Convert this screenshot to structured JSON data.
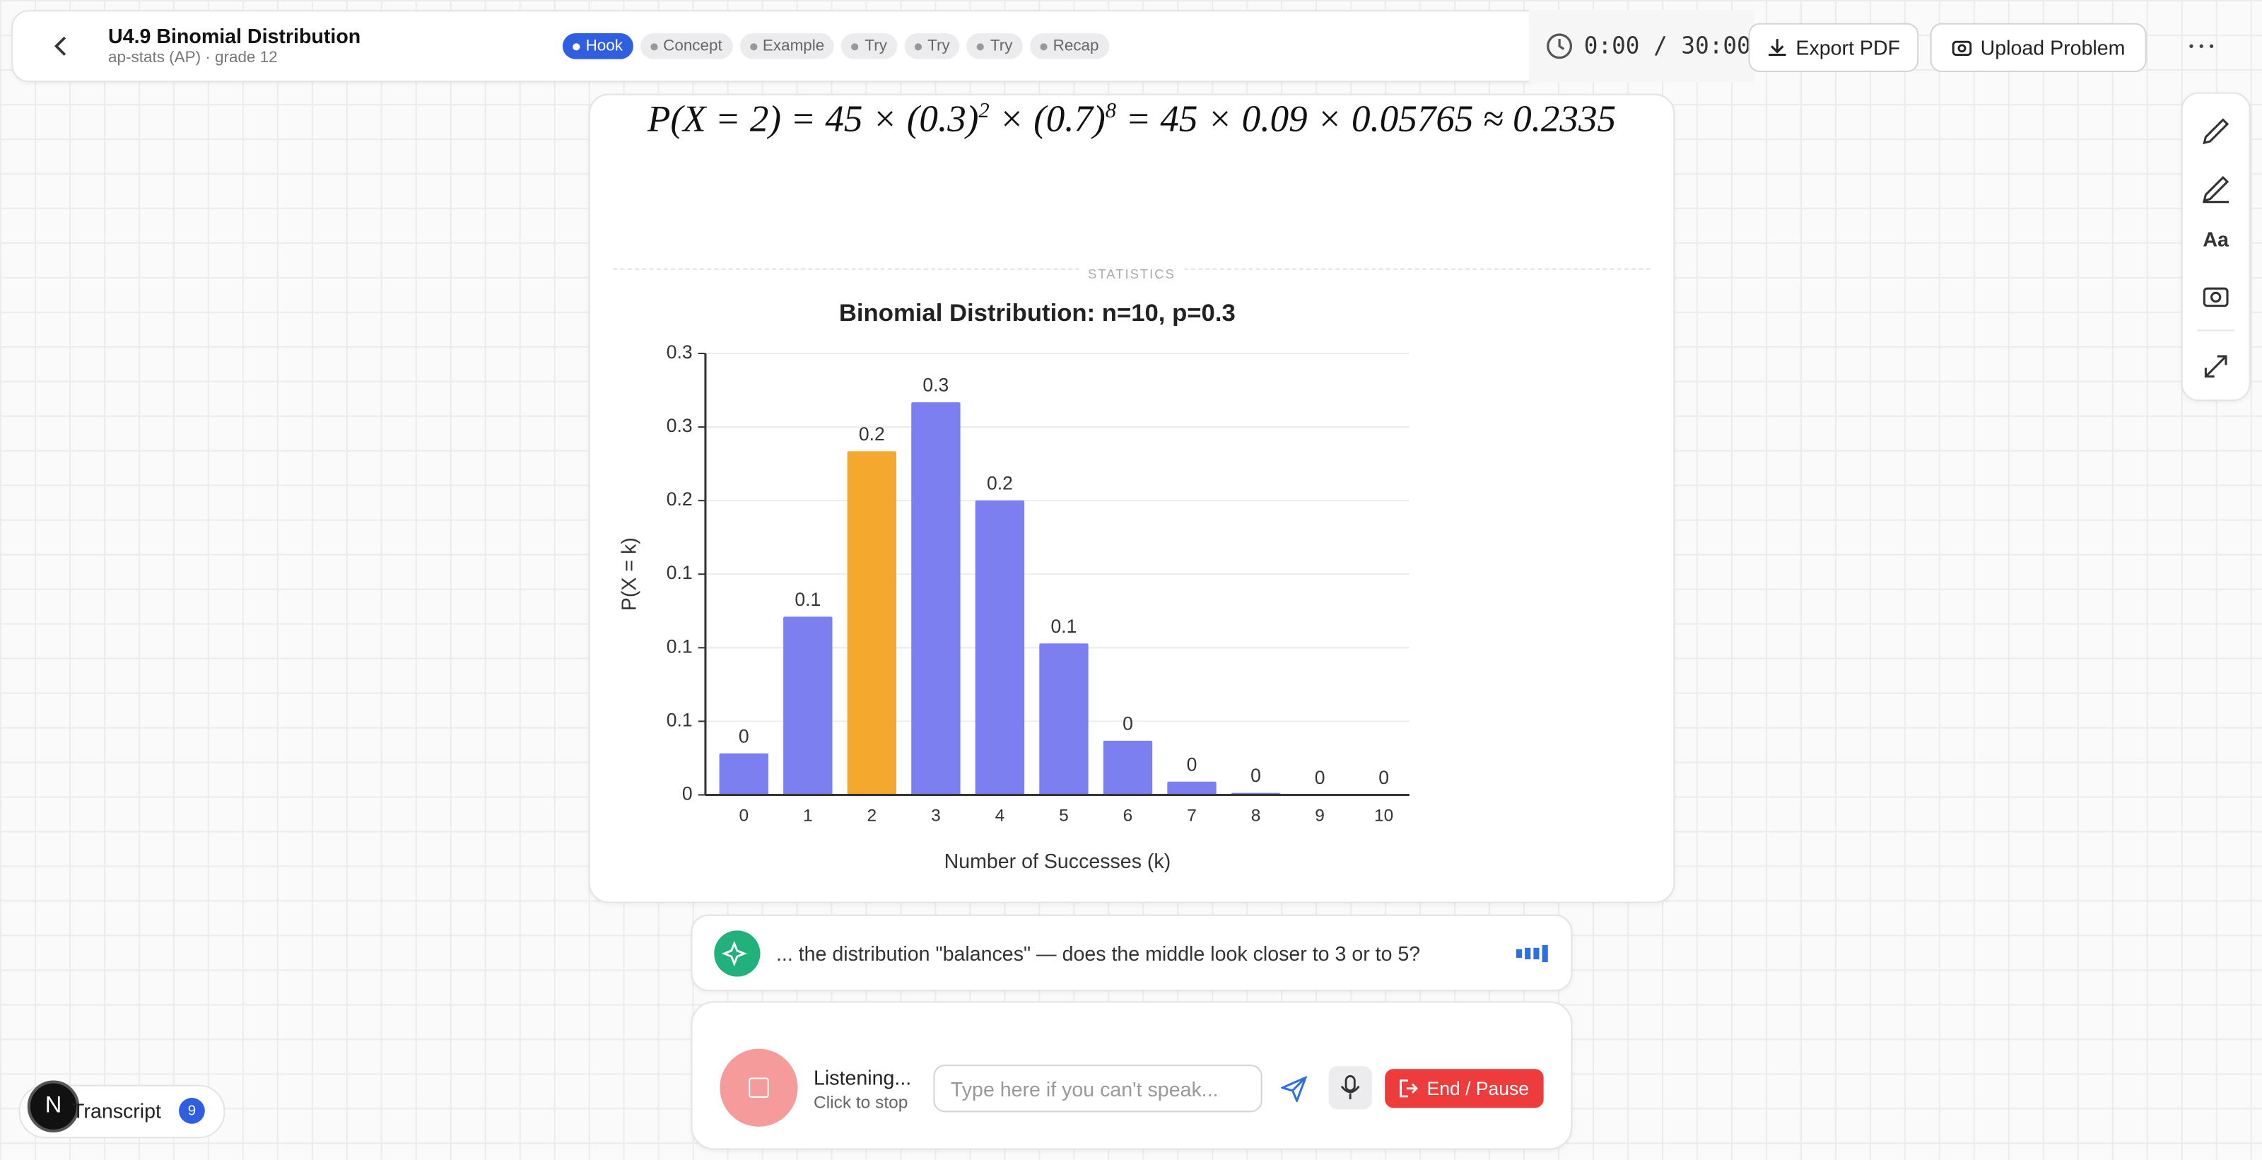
{
  "header": {
    "title": "U4.9 Binomial Distribution",
    "subtitle": "ap-stats (AP) · grade 12"
  },
  "lesson_steps": [
    "Hook",
    "Concept",
    "Example",
    "Try",
    "Try",
    "Try",
    "Recap"
  ],
  "timer": "0:00 / 30:00",
  "buttons": {
    "export": "Export PDF",
    "upload": "Upload Problem",
    "end": "End / Pause"
  },
  "formula": [
    "P(X = 2) = 45 × (0.3)",
    "2",
    " × (0.7)",
    "8",
    " = 45 × 0.09 × 0.05765 ≈ 0.2335"
  ],
  "section_label": "STATISTICS",
  "chart_data": {
    "type": "bar",
    "title": "Binomial Distribution: n=10, p=0.3",
    "x_label": "Number of Successes (k)",
    "y_label": "P(X = k)",
    "categories": [
      "0",
      "1",
      "2",
      "3",
      "4",
      "5",
      "6",
      "7",
      "8",
      "9",
      "10"
    ],
    "values": [
      0.0282,
      0.1211,
      0.2335,
      0.2668,
      0.2001,
      0.1029,
      0.0368,
      0.009,
      0.0014,
      0.0001,
      0
    ],
    "value_labels": [
      "0",
      "0.1",
      "0.2",
      "0.3",
      "0.2",
      "0.1",
      "0",
      "0",
      "0",
      "0",
      "0"
    ],
    "bar_colors": [
      "#7b7ff0",
      "#7b7ff0",
      "#f5a82e",
      "#7b7ff0",
      "#7b7ff0",
      "#7b7ff0",
      "#7b7ff0",
      "#7b7ff0",
      "#7b7ff0",
      "#7b7ff0",
      "#7b7ff0"
    ],
    "ylim": [
      0,
      0.3
    ],
    "yticks": [
      0,
      {
        "value": 0.05,
        "label": "0.1"
      },
      {
        "value": 0.1,
        "label": "0.1"
      },
      {
        "value": 0.15,
        "label": "0.1"
      },
      {
        "value": 0.2,
        "label": "0.2"
      },
      {
        "value": 0.25,
        "label": "0.3"
      },
      {
        "value": 0.3,
        "label": "0.3"
      }
    ],
    "grid": true
  },
  "assistant_message": "... the distribution \"balances\" — does the middle look closer to 3 or to 5?",
  "status": {
    "title": "Listening...",
    "hint": "Click to stop"
  },
  "input_placeholder": "Type here if you can't speak...",
  "transcript": {
    "label": "Transcript",
    "count": "9",
    "avatar": "N"
  }
}
